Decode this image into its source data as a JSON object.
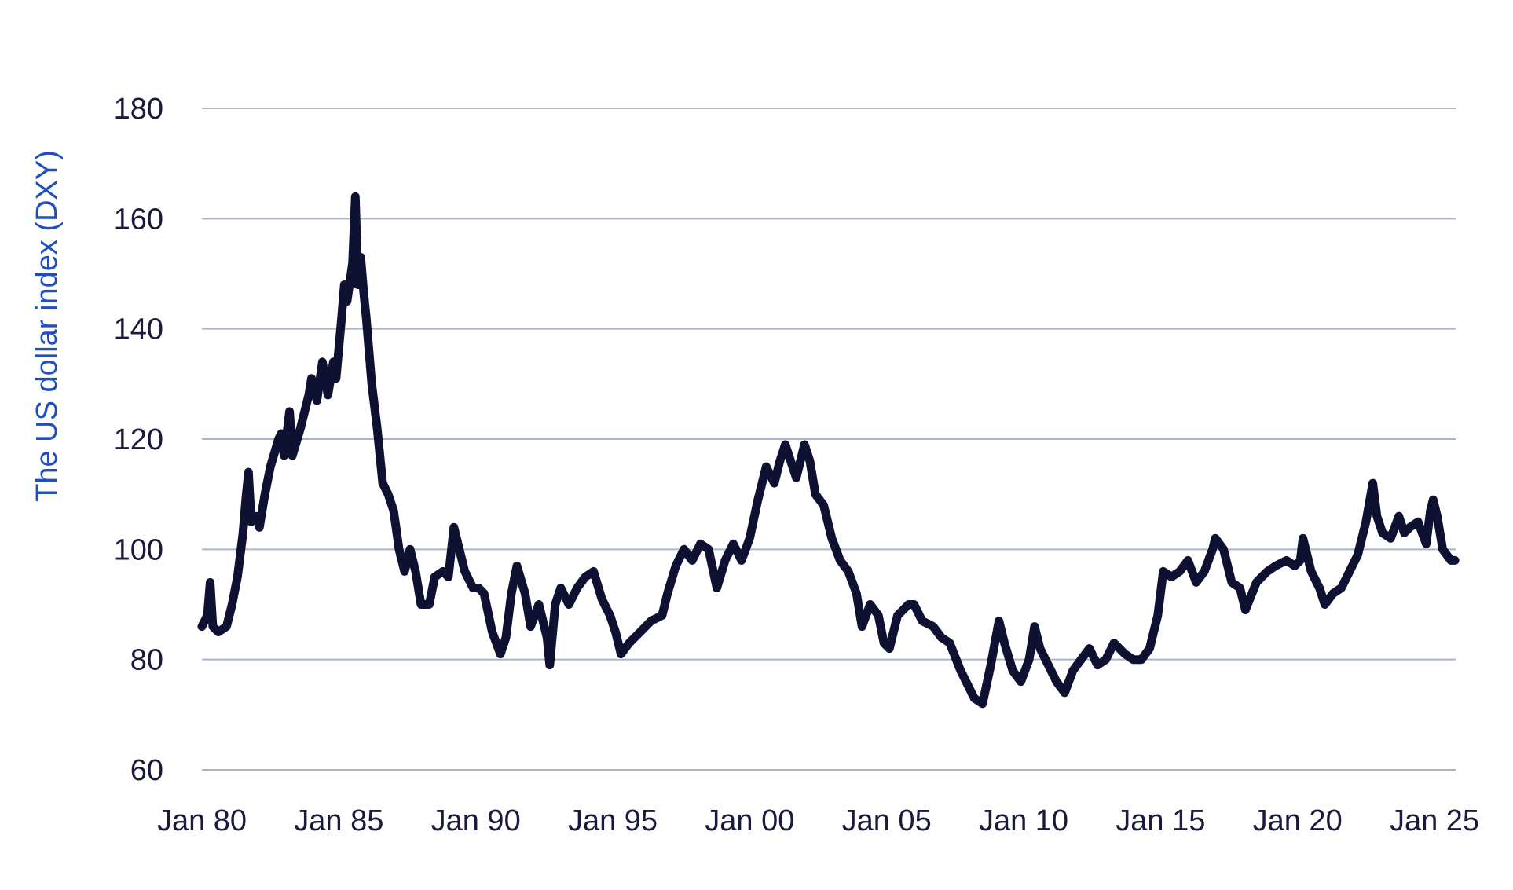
{
  "chart_data": {
    "type": "line",
    "title": "",
    "xlabel": "",
    "ylabel": "The US dollar index (DXY)",
    "ylim": [
      60,
      180
    ],
    "yticks": [
      "60",
      "80",
      "100",
      "120",
      "140",
      "160",
      "180"
    ],
    "xticks": [
      "Jan 80",
      "Jan 85",
      "Jan 90",
      "Jan 95",
      "Jan 00",
      "Jan 05",
      "Jan 10",
      "Jan 15",
      "Jan 20",
      "Jan 25"
    ],
    "xrange": [
      1980.0,
      2025.0
    ],
    "grid": true,
    "legend": "none",
    "line_color": "#0f1133",
    "series": [
      {
        "values": [
          [
            1980.0,
            86
          ],
          [
            1980.2,
            88
          ],
          [
            1980.3,
            94
          ],
          [
            1980.4,
            86
          ],
          [
            1980.6,
            85
          ],
          [
            1980.9,
            86
          ],
          [
            1981.1,
            90
          ],
          [
            1981.3,
            95
          ],
          [
            1981.5,
            103
          ],
          [
            1981.6,
            109
          ],
          [
            1981.7,
            114
          ],
          [
            1981.8,
            105
          ],
          [
            1982.0,
            106
          ],
          [
            1982.1,
            104
          ],
          [
            1982.3,
            110
          ],
          [
            1982.5,
            115
          ],
          [
            1982.8,
            120
          ],
          [
            1982.9,
            121
          ],
          [
            1983.0,
            117
          ],
          [
            1983.2,
            125
          ],
          [
            1983.3,
            117
          ],
          [
            1983.6,
            122
          ],
          [
            1983.9,
            128
          ],
          [
            1984.0,
            131
          ],
          [
            1984.2,
            127
          ],
          [
            1984.4,
            134
          ],
          [
            1984.6,
            128
          ],
          [
            1984.8,
            134
          ],
          [
            1984.9,
            131
          ],
          [
            1985.1,
            142
          ],
          [
            1985.2,
            148
          ],
          [
            1985.3,
            145
          ],
          [
            1985.5,
            152
          ],
          [
            1985.6,
            164
          ],
          [
            1985.7,
            148
          ],
          [
            1985.8,
            153
          ],
          [
            1985.9,
            147
          ],
          [
            1986.0,
            142
          ],
          [
            1986.2,
            130
          ],
          [
            1986.4,
            122
          ],
          [
            1986.6,
            112
          ],
          [
            1986.8,
            110
          ],
          [
            1987.0,
            107
          ],
          [
            1987.2,
            100
          ],
          [
            1987.4,
            96
          ],
          [
            1987.6,
            100
          ],
          [
            1987.8,
            96
          ],
          [
            1988.0,
            90
          ],
          [
            1988.3,
            90
          ],
          [
            1988.5,
            95
          ],
          [
            1988.8,
            96
          ],
          [
            1989.0,
            95
          ],
          [
            1989.2,
            104
          ],
          [
            1989.4,
            100
          ],
          [
            1989.6,
            96
          ],
          [
            1989.9,
            93
          ],
          [
            1990.1,
            93
          ],
          [
            1990.3,
            92
          ],
          [
            1990.6,
            85
          ],
          [
            1990.9,
            81
          ],
          [
            1991.1,
            84
          ],
          [
            1991.3,
            92
          ],
          [
            1991.5,
            97
          ],
          [
            1991.8,
            92
          ],
          [
            1992.0,
            86
          ],
          [
            1992.3,
            90
          ],
          [
            1992.6,
            84
          ],
          [
            1992.7,
            79
          ],
          [
            1992.9,
            90
          ],
          [
            1993.1,
            93
          ],
          [
            1993.4,
            90
          ],
          [
            1993.7,
            93
          ],
          [
            1994.0,
            95
          ],
          [
            1994.3,
            96
          ],
          [
            1994.6,
            91
          ],
          [
            1994.9,
            88
          ],
          [
            1995.1,
            85
          ],
          [
            1995.3,
            81
          ],
          [
            1995.6,
            83
          ],
          [
            1996.0,
            85
          ],
          [
            1996.4,
            87
          ],
          [
            1996.8,
            88
          ],
          [
            1997.0,
            92
          ],
          [
            1997.3,
            97
          ],
          [
            1997.6,
            100
          ],
          [
            1997.9,
            98
          ],
          [
            1998.2,
            101
          ],
          [
            1998.5,
            100
          ],
          [
            1998.8,
            93
          ],
          [
            1999.1,
            98
          ],
          [
            1999.4,
            101
          ],
          [
            1999.7,
            98
          ],
          [
            2000.0,
            102
          ],
          [
            2000.3,
            109
          ],
          [
            2000.6,
            115
          ],
          [
            2000.9,
            112
          ],
          [
            2001.1,
            116
          ],
          [
            2001.3,
            119
          ],
          [
            2001.5,
            116
          ],
          [
            2001.7,
            113
          ],
          [
            2002.0,
            119
          ],
          [
            2002.2,
            116
          ],
          [
            2002.4,
            110
          ],
          [
            2002.7,
            108
          ],
          [
            2003.0,
            102
          ],
          [
            2003.3,
            98
          ],
          [
            2003.6,
            96
          ],
          [
            2003.9,
            92
          ],
          [
            2004.1,
            86
          ],
          [
            2004.4,
            90
          ],
          [
            2004.7,
            88
          ],
          [
            2004.9,
            83
          ],
          [
            2005.1,
            82
          ],
          [
            2005.4,
            88
          ],
          [
            2005.8,
            90
          ],
          [
            2006.0,
            90
          ],
          [
            2006.3,
            87
          ],
          [
            2006.7,
            86
          ],
          [
            2007.0,
            84
          ],
          [
            2007.3,
            83
          ],
          [
            2007.7,
            78
          ],
          [
            2007.9,
            76
          ],
          [
            2008.2,
            73
          ],
          [
            2008.5,
            72
          ],
          [
            2008.8,
            79
          ],
          [
            2009.1,
            87
          ],
          [
            2009.3,
            83
          ],
          [
            2009.6,
            78
          ],
          [
            2009.9,
            76
          ],
          [
            2010.2,
            80
          ],
          [
            2010.4,
            86
          ],
          [
            2010.6,
            82
          ],
          [
            2010.9,
            79
          ],
          [
            2011.2,
            76
          ],
          [
            2011.5,
            74
          ],
          [
            2011.8,
            78
          ],
          [
            2012.1,
            80
          ],
          [
            2012.4,
            82
          ],
          [
            2012.7,
            79
          ],
          [
            2013.0,
            80
          ],
          [
            2013.3,
            83
          ],
          [
            2013.7,
            81
          ],
          [
            2014.0,
            80
          ],
          [
            2014.3,
            80
          ],
          [
            2014.6,
            82
          ],
          [
            2014.9,
            88
          ],
          [
            2015.1,
            96
          ],
          [
            2015.4,
            95
          ],
          [
            2015.7,
            96
          ],
          [
            2016.0,
            98
          ],
          [
            2016.3,
            94
          ],
          [
            2016.6,
            96
          ],
          [
            2016.9,
            100
          ],
          [
            2017.0,
            102
          ],
          [
            2017.3,
            100
          ],
          [
            2017.6,
            94
          ],
          [
            2017.9,
            93
          ],
          [
            2018.1,
            89
          ],
          [
            2018.5,
            94
          ],
          [
            2018.9,
            96
          ],
          [
            2019.2,
            97
          ],
          [
            2019.6,
            98
          ],
          [
            2019.9,
            97
          ],
          [
            2020.1,
            98
          ],
          [
            2020.2,
            102
          ],
          [
            2020.5,
            96
          ],
          [
            2020.8,
            93
          ],
          [
            2021.0,
            90
          ],
          [
            2021.3,
            92
          ],
          [
            2021.6,
            93
          ],
          [
            2021.9,
            96
          ],
          [
            2022.2,
            99
          ],
          [
            2022.5,
            105
          ],
          [
            2022.75,
            112
          ],
          [
            2022.9,
            106
          ],
          [
            2023.1,
            103
          ],
          [
            2023.4,
            102
          ],
          [
            2023.7,
            106
          ],
          [
            2023.9,
            103
          ],
          [
            2024.1,
            104
          ],
          [
            2024.4,
            105
          ],
          [
            2024.7,
            101
          ],
          [
            2024.85,
            107
          ],
          [
            2024.95,
            109
          ],
          [
            2025.1,
            106
          ],
          [
            2025.3,
            100
          ],
          [
            2025.6,
            98
          ],
          [
            2025.75,
            98
          ]
        ]
      }
    ]
  }
}
